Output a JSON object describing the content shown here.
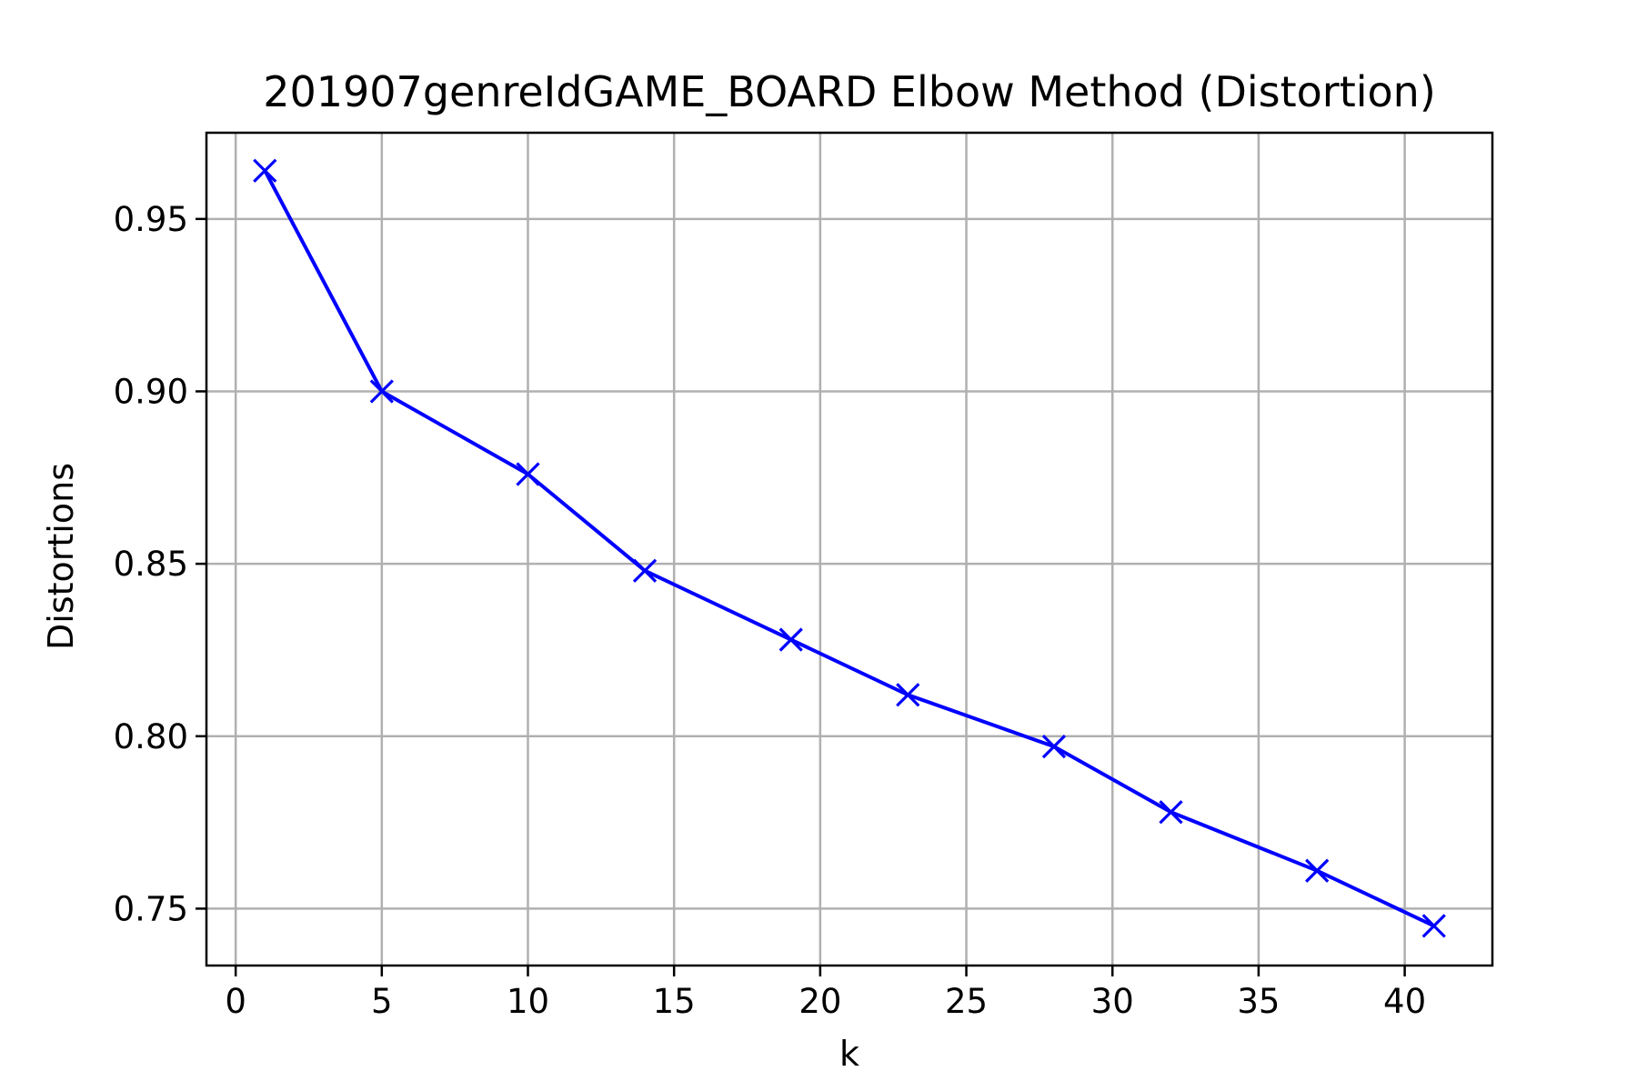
{
  "chart_data": {
    "type": "line",
    "title": "201907genreIdGAME_BOARD Elbow Method (Distortion)",
    "xlabel": "k",
    "ylabel": "Distortions",
    "xlim": [
      -1,
      43
    ],
    "ylim": [
      0.7335,
      0.975
    ],
    "x_ticks": [
      0,
      5,
      10,
      15,
      20,
      25,
      30,
      35,
      40
    ],
    "y_ticks": [
      0.75,
      0.8,
      0.85,
      0.9,
      0.95
    ],
    "y_tick_labels": [
      "0.75",
      "0.80",
      "0.85",
      "0.90",
      "0.95"
    ],
    "grid": true,
    "marker": "x",
    "color": "#0000ff",
    "x": [
      1,
      5,
      10,
      14,
      19,
      23,
      28,
      32,
      37,
      41
    ],
    "series": [
      {
        "values": [
          0.964,
          0.9,
          0.876,
          0.848,
          0.828,
          0.812,
          0.797,
          0.778,
          0.761,
          0.745
        ]
      }
    ]
  }
}
